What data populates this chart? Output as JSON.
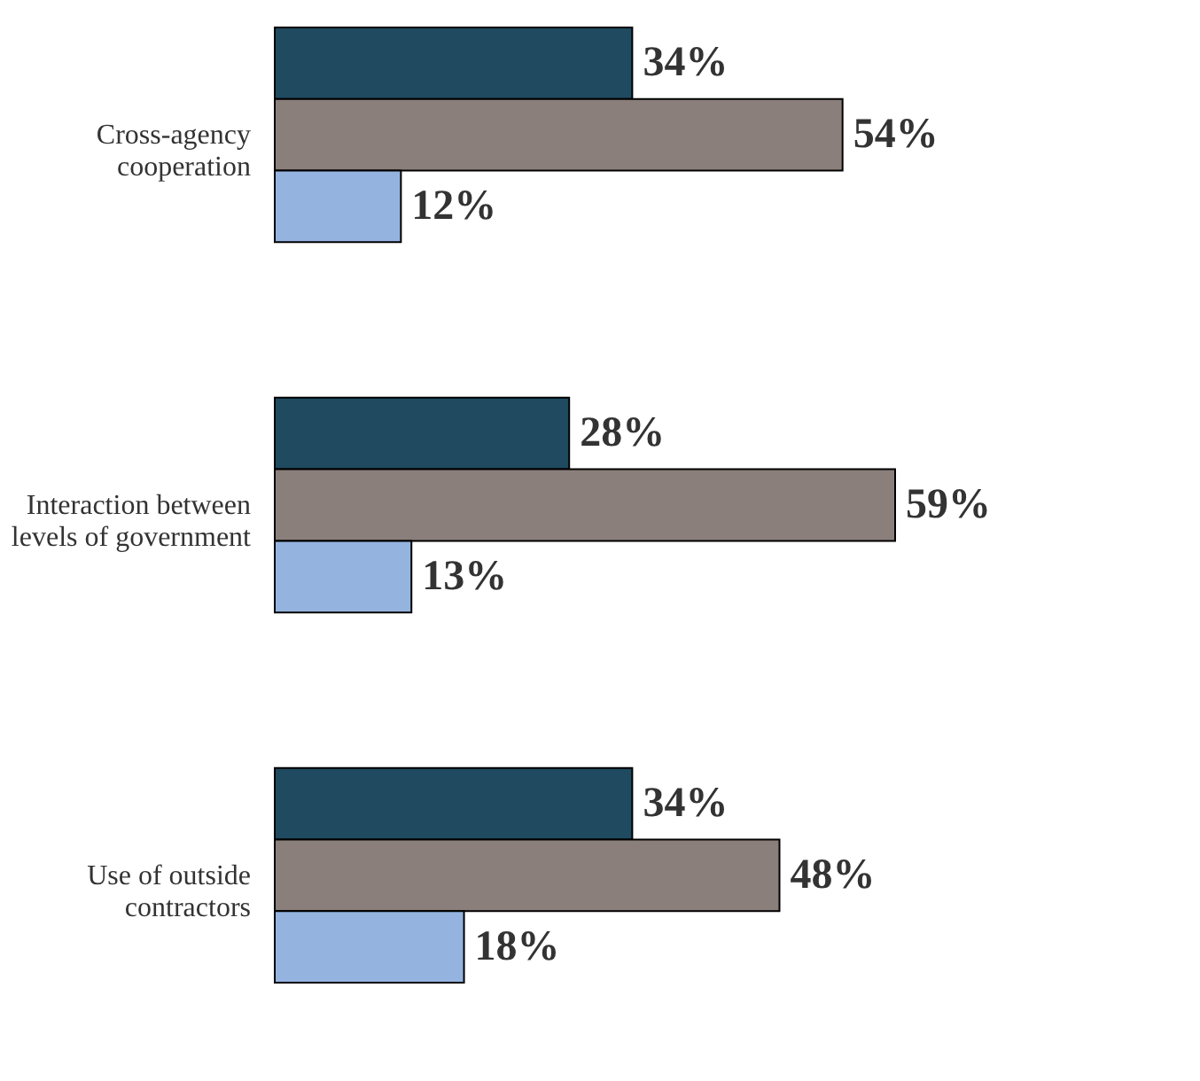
{
  "chart_data": {
    "type": "bar",
    "orientation": "horizontal",
    "categories": [
      "Cross-agency cooperation",
      "Interaction between levels of government",
      "Use of outside contractors"
    ],
    "series": [
      {
        "color": "#1f4a60",
        "values": [
          34,
          28,
          34
        ],
        "value_labels": [
          "34%",
          "28%",
          "34%"
        ]
      },
      {
        "color": "#8b7f7b",
        "values": [
          54,
          59,
          48
        ],
        "value_labels": [
          "54%",
          "59%",
          "48%"
        ]
      },
      {
        "color": "#95b3df",
        "values": [
          12,
          13,
          18
        ],
        "value_labels": [
          "12%",
          "13%",
          "18%"
        ]
      }
    ],
    "legend": false,
    "grid": false
  }
}
